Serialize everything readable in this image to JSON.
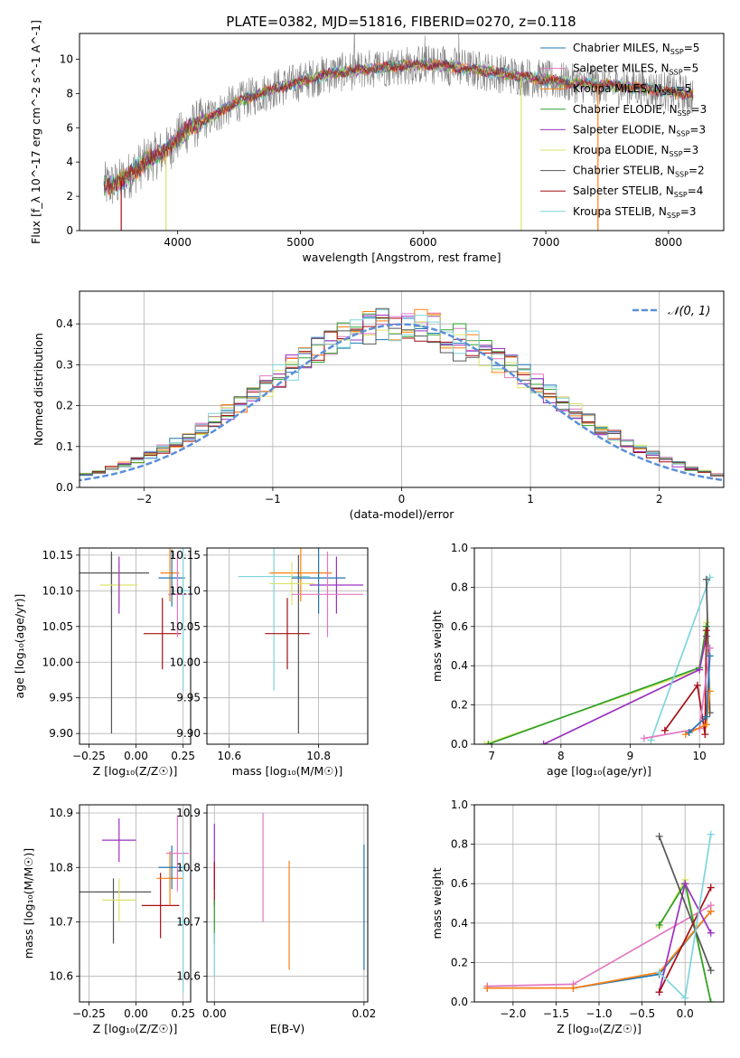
{
  "figure_title": "PLATE=0382, MJD=51816, FIBERID=0270, z=0.118",
  "colors": {
    "Chabrier MILES": "#1f77b4",
    "Salpeter MILES": "#e377c2",
    "Kroupa MILES": "#ff7f0e",
    "Chabrier ELODIE": "#2ca02c",
    "Salpeter ELODIE": "#9b30c0",
    "Kroupa ELODIE": "#dbe36a",
    "Chabrier STELIB": "#555555",
    "Salpeter STELIB": "#a50f15",
    "Kroupa STELIB": "#7fd4dc",
    "data": "#808080",
    "gaussian": "#5b8fd9",
    "grid": "#b0b0b0"
  },
  "chart_data": [
    {
      "id": "spectrum",
      "type": "line",
      "title": "PLATE=0382, MJD=51816, FIBERID=0270, z=0.118",
      "xlabel": "wavelength [Angstrom, rest frame]",
      "ylabel": "Flux [f_λ 10^-17 erg cm^-2 s^-1 A^-1]",
      "xlim": [
        3200,
        8450
      ],
      "ylim": [
        0,
        11.5
      ],
      "xticks": [
        "4000",
        "5000",
        "6000",
        "7000",
        "8000"
      ],
      "yticks": [
        "0",
        "2",
        "4",
        "6",
        "8",
        "10"
      ],
      "grid": false,
      "legend_position": "upper right",
      "legend": [
        {
          "label": "Chabrier MILES, N",
          "sub": "SSP",
          "tail": "=5"
        },
        {
          "label": "Salpeter MILES, N",
          "sub": "SSP",
          "tail": "=5"
        },
        {
          "label": "Kroupa MILES, N",
          "sub": "SSP",
          "tail": "=5"
        },
        {
          "label": "Chabrier ELODIE, N",
          "sub": "SSP",
          "tail": "=3"
        },
        {
          "label": "Salpeter ELODIE, N",
          "sub": "SSP",
          "tail": "=3"
        },
        {
          "label": "Kroupa ELODIE, N",
          "sub": "SSP",
          "tail": "=3"
        },
        {
          "label": "Chabrier STELIB, N",
          "sub": "SSP",
          "tail": "=2"
        },
        {
          "label": "Salpeter STELIB, N",
          "sub": "SSP",
          "tail": "=4"
        },
        {
          "label": "Kroupa STELIB, N",
          "sub": "SSP",
          "tail": "=3"
        }
      ],
      "continuum_x": [
        3400,
        3500,
        3600,
        3700,
        3800,
        3900,
        4000,
        4100,
        4200,
        4300,
        4400,
        4500,
        4600,
        4800,
        5000,
        5200,
        5500,
        5800,
        6000,
        6200,
        6500,
        6800,
        7000,
        7200,
        7500,
        7800,
        8000,
        8200
      ],
      "continuum_y": [
        2.6,
        2.7,
        3.2,
        3.8,
        4.3,
        4.6,
        5.4,
        6.0,
        6.4,
        6.7,
        7.2,
        7.5,
        7.8,
        8.3,
        8.7,
        9.1,
        9.4,
        9.6,
        9.7,
        9.6,
        9.3,
        9.0,
        8.8,
        8.6,
        8.5,
        8.3,
        8.1,
        7.9
      ],
      "drops": [
        {
          "x": 3540,
          "series": "Salpeter STELIB"
        },
        {
          "x": 3905,
          "series": "Kroupa ELODIE"
        },
        {
          "x": 6800,
          "series": "Kroupa ELODIE"
        },
        {
          "x": 7425,
          "series": "Kroupa MILES"
        }
      ]
    },
    {
      "id": "residuals",
      "type": "step",
      "xlabel": "(data-model)/error",
      "ylabel": "Normed distribution",
      "xlim": [
        -2.5,
        2.5
      ],
      "ylim": [
        0,
        0.48
      ],
      "xticks": [
        "-2",
        "-1",
        "0",
        "1",
        "2"
      ],
      "yticks": [
        "0.0",
        "0.1",
        "0.2",
        "0.3",
        "0.4"
      ],
      "grid": true,
      "legend_position": "upper right",
      "legend_label": "𝒩(0, 1)",
      "bin_width": 0.1
    },
    {
      "id": "age_vs_Z",
      "type": "errorbar",
      "xlabel": "Z [log₁₀(Z/Z☉)]",
      "ylabel": "age  [log₁₀(age/yr)]",
      "xlim": [
        -0.3,
        0.29
      ],
      "ylim": [
        9.885,
        10.16
      ],
      "xticks": [
        "-0.25",
        "0.00",
        "0.25"
      ],
      "xtick_values": [
        -0.25,
        0.0,
        0.25
      ],
      "yticks": [
        "9.90",
        "9.95",
        "10.00",
        "10.05",
        "10.10",
        "10.15"
      ],
      "ytick_values": [
        9.9,
        9.95,
        10.0,
        10.05,
        10.1,
        10.15
      ],
      "grid": true,
      "points": [
        {
          "series": "Chabrier STELIB",
          "x": -0.13,
          "xerr": 0.2,
          "y": 10.125,
          "yerr": 0.03
        },
        {
          "series": "Chabrier STELIB",
          "x": -0.13,
          "xerr": 0.0,
          "y": 10.025,
          "yerr": 0.125
        },
        {
          "series": "Kroupa ELODIE",
          "x": -0.09,
          "xerr": 0.1,
          "y": 10.108,
          "yerr": 0.03
        },
        {
          "series": "Salpeter ELODIE",
          "x": -0.09,
          "xerr": 0.0,
          "y": 10.108,
          "yerr": 0.04
        },
        {
          "series": "Salpeter STELIB",
          "x": 0.14,
          "xerr": 0.1,
          "y": 10.04,
          "yerr": 0.05
        },
        {
          "series": "Kroupa MILES",
          "x": 0.18,
          "xerr": 0.05,
          "y": 10.125,
          "yerr": 0.04
        },
        {
          "series": "Chabrier MILES",
          "x": 0.19,
          "xerr": 0.07,
          "y": 10.118,
          "yerr": 0.04
        },
        {
          "series": "Salpeter MILES",
          "x": 0.22,
          "xerr": 0.05,
          "y": 10.095,
          "yerr": 0.06
        },
        {
          "series": "Kroupa STELIB",
          "x": 0.25,
          "xerr": 0.03,
          "y": 10.1,
          "yerr": 0.14
        }
      ]
    },
    {
      "id": "age_vs_mass",
      "type": "errorbar",
      "xlabel": "mass [log₁₀(M/M☉)]",
      "xlim": [
        10.55,
        10.91
      ],
      "ylim": [
        9.885,
        10.16
      ],
      "xticks": [
        "10.6",
        "10.8"
      ],
      "xtick_values": [
        10.6,
        10.8
      ],
      "yticks": [
        "9.90",
        "9.95",
        "10.00",
        "10.05",
        "10.10",
        "10.15"
      ],
      "ytick_values": [
        9.9,
        9.95,
        10.0,
        10.05,
        10.1,
        10.15
      ],
      "grid": true,
      "points": [
        {
          "series": "Kroupa STELIB",
          "x": 10.7,
          "xerr": 0.08,
          "y": 10.12,
          "yerr": 0.16
        },
        {
          "series": "Kroupa MILES",
          "x": 10.76,
          "xerr": 0.07,
          "y": 10.125,
          "yerr": 0.04
        },
        {
          "series": "Chabrier STELIB",
          "x": 10.755,
          "xerr": 0.0,
          "y": 10.025,
          "yerr": 0.125
        },
        {
          "series": "Salpeter STELIB",
          "x": 10.73,
          "xerr": 0.05,
          "y": 10.04,
          "yerr": 0.05
        },
        {
          "series": "Kroupa ELODIE",
          "x": 10.74,
          "xerr": 0.05,
          "y": 10.11,
          "yerr": 0.03
        },
        {
          "series": "Salpeter ELODIE",
          "x": 10.84,
          "xerr": 0.06,
          "y": 10.108,
          "yerr": 0.04
        },
        {
          "series": "Chabrier MILES",
          "x": 10.8,
          "xerr": 0.06,
          "y": 10.118,
          "yerr": 0.05
        },
        {
          "series": "Salpeter MILES",
          "x": 10.82,
          "xerr": 0.08,
          "y": 10.095,
          "yerr": 0.06
        }
      ]
    },
    {
      "id": "weight_vs_age",
      "type": "line",
      "xlabel": "age  [log₁₀(age/yr)]",
      "ylabel": "mass weight",
      "xlim": [
        6.75,
        10.35
      ],
      "ylim": [
        0,
        1.0
      ],
      "xticks": [
        "7",
        "8",
        "9",
        "10"
      ],
      "xtick_values": [
        7,
        8,
        9,
        10
      ],
      "yticks": [
        "0.0",
        "0.2",
        "0.4",
        "0.6",
        "0.8",
        "1.0"
      ],
      "ytick_values": [
        0.0,
        0.2,
        0.4,
        0.6,
        0.8,
        1.0
      ],
      "grid": true,
      "series": [
        {
          "name": "Kroupa ELODIE",
          "x": [
            6.9,
            10.0,
            10.1
          ],
          "y": [
            0.0,
            0.38,
            0.62
          ]
        },
        {
          "name": "Chabrier ELODIE",
          "x": [
            6.95,
            10.0,
            10.1
          ],
          "y": [
            0.0,
            0.39,
            0.6
          ]
        },
        {
          "name": "Salpeter ELODIE",
          "x": [
            7.75,
            10.0,
            10.1
          ],
          "y": [
            0.0,
            0.38,
            0.55
          ]
        },
        {
          "name": "Kroupa STELIB",
          "x": [
            9.3,
            10.15
          ],
          "y": [
            0.02,
            0.85
          ]
        },
        {
          "name": "Chabrier STELIB",
          "x": [
            10.1,
            10.15
          ],
          "y": [
            0.84,
            0.16
          ]
        },
        {
          "name": "Salpeter STELIB",
          "x": [
            9.5,
            9.97,
            10.08,
            10.1
          ],
          "y": [
            0.07,
            0.3,
            0.05,
            0.58
          ]
        },
        {
          "name": "Salpeter MILES",
          "x": [
            9.2,
            10.0,
            10.15
          ],
          "y": [
            0.03,
            0.08,
            0.49
          ]
        },
        {
          "name": "Kroupa MILES",
          "x": [
            9.8,
            10.1,
            10.15
          ],
          "y": [
            0.05,
            0.1,
            0.27
          ]
        },
        {
          "name": "Chabrier MILES",
          "x": [
            9.85,
            10.1,
            10.15
          ],
          "y": [
            0.06,
            0.14,
            0.45
          ]
        }
      ]
    },
    {
      "id": "mass_vs_Z",
      "type": "errorbar",
      "xlabel": "Z [log₁₀(Z/Z☉)]",
      "ylabel": "mass [log₁₀(M/M☉)]",
      "xlim": [
        -0.3,
        0.29
      ],
      "ylim": [
        10.553,
        10.915
      ],
      "xticks": [
        "-0.25",
        "0.00",
        "0.25"
      ],
      "xtick_values": [
        -0.25,
        0.0,
        0.25
      ],
      "yticks": [
        "10.6",
        "10.7",
        "10.8",
        "10.9"
      ],
      "ytick_values": [
        10.6,
        10.7,
        10.8,
        10.9
      ],
      "grid": true,
      "points": [
        {
          "series": "Salpeter ELODIE",
          "x": -0.09,
          "xerr": 0.09,
          "y": 10.85,
          "yerr": 0.04
        },
        {
          "series": "Chabrier STELIB",
          "x": -0.12,
          "xerr": 0.2,
          "y": 10.755,
          "yerr": 0.0
        },
        {
          "series": "Chabrier STELIB",
          "x": -0.12,
          "xerr": 0.0,
          "y": 10.72,
          "yerr": 0.06
        },
        {
          "series": "Kroupa ELODIE",
          "x": -0.09,
          "xerr": 0.09,
          "y": 10.74,
          "yerr": 0.04
        },
        {
          "series": "Salpeter STELIB",
          "x": 0.13,
          "xerr": 0.1,
          "y": 10.73,
          "yerr": 0.06
        },
        {
          "series": "Kroupa MILES",
          "x": 0.18,
          "xerr": 0.07,
          "y": 10.78,
          "yerr": 0.05
        },
        {
          "series": "Chabrier MILES",
          "x": 0.19,
          "xerr": 0.07,
          "y": 10.8,
          "yerr": 0.04
        },
        {
          "series": "Salpeter MILES",
          "x": 0.22,
          "xerr": 0.06,
          "y": 10.826,
          "yerr": 0.07
        },
        {
          "series": "Kroupa STELIB",
          "x": 0.25,
          "xerr": 0.03,
          "y": 10.7,
          "yerr": 0.13
        }
      ]
    },
    {
      "id": "mass_vs_ebv",
      "type": "errorbar",
      "xlabel": "E(B-V)",
      "xlim": [
        -0.001,
        0.0205
      ],
      "ylim": [
        10.553,
        10.915
      ],
      "xticks": [
        "0.00",
        "0.02"
      ],
      "xtick_values": [
        0.0,
        0.02
      ],
      "yticks": [
        "10.6",
        "10.7",
        "10.8",
        "10.9"
      ],
      "ytick_values": [
        10.6,
        10.7,
        10.8,
        10.9
      ],
      "grid": true,
      "points": [
        {
          "series": "Salpeter ELODIE",
          "x": 0.0,
          "xerr": 0.0,
          "y": 10.82,
          "yerr": 0.06
        },
        {
          "series": "Salpeter STELIB",
          "x": 0.0,
          "xerr": 0.0,
          "y": 10.77,
          "yerr": 0.04
        },
        {
          "series": "Chabrier ELODIE",
          "x": 0.0,
          "xerr": 0.0,
          "y": 10.7,
          "yerr": 0.04
        },
        {
          "series": "Kroupa STELIB",
          "x": 0.0,
          "xerr": 0.0,
          "y": 10.64,
          "yerr": 0.04
        },
        {
          "series": "Salpeter MILES",
          "x": 0.0065,
          "xerr": 0.0,
          "y": 10.8,
          "yerr": 0.1
        },
        {
          "series": "Kroupa MILES",
          "x": 0.01,
          "xerr": 0.0,
          "y": 10.712,
          "yerr": 0.1
        },
        {
          "series": "Chabrier MILES",
          "x": 0.02,
          "xerr": 0.0,
          "y": 10.727,
          "yerr": 0.115
        }
      ]
    },
    {
      "id": "weight_vs_Z",
      "type": "line",
      "xlabel": "Z [log₁₀(Z/Z☉)]",
      "ylabel": "mass weight",
      "xlim": [
        -2.45,
        0.45
      ],
      "ylim": [
        0,
        1.0
      ],
      "xticks": [
        "-2.0",
        "-1.5",
        "-1.0",
        "-0.5",
        "0.0"
      ],
      "xtick_values": [
        -2.0,
        -1.5,
        -1.0,
        -0.5,
        0.0
      ],
      "yticks": [
        "0.0",
        "0.2",
        "0.4",
        "0.6",
        "0.8",
        "1.0"
      ],
      "ytick_values": [
        0.0,
        0.2,
        0.4,
        0.6,
        0.8,
        1.0
      ],
      "grid": true,
      "series": [
        {
          "name": "Salpeter MILES",
          "x": [
            -2.3,
            -1.3,
            0.3
          ],
          "y": [
            0.08,
            0.09,
            0.49
          ]
        },
        {
          "name": "Chabrier MILES",
          "x": [
            -2.3,
            -1.3,
            -0.3,
            0.3
          ],
          "y": [
            0.07,
            0.07,
            0.14,
            0.46
          ]
        },
        {
          "name": "Kroupa MILES",
          "x": [
            -2.3,
            -1.3,
            -0.3,
            0.3
          ],
          "y": [
            0.07,
            0.07,
            0.15,
            0.46
          ]
        },
        {
          "name": "Kroupa ELODIE",
          "x": [
            -0.3,
            0.0,
            0.3
          ],
          "y": [
            0.38,
            0.62,
            0.0
          ]
        },
        {
          "name": "Chabrier ELODIE",
          "x": [
            -0.3,
            0.0,
            0.3
          ],
          "y": [
            0.39,
            0.6,
            0.0
          ]
        },
        {
          "name": "Salpeter ELODIE",
          "x": [
            -0.3,
            0.0,
            0.3
          ],
          "y": [
            0.05,
            0.6,
            0.35
          ]
        },
        {
          "name": "Chabrier STELIB",
          "x": [
            -0.3,
            0.3
          ],
          "y": [
            0.84,
            0.16
          ]
        },
        {
          "name": "Salpeter STELIB",
          "x": [
            -0.3,
            0.3
          ],
          "y": [
            0.05,
            0.58
          ]
        },
        {
          "name": "Kroupa STELIB",
          "x": [
            -0.3,
            0.0,
            0.3
          ],
          "y": [
            0.15,
            0.02,
            0.85
          ]
        }
      ]
    }
  ]
}
